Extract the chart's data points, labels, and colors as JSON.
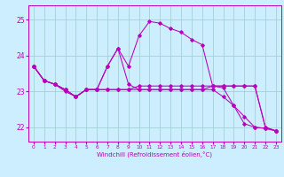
{
  "title": "",
  "xlabel": "Windchill (Refroidissement éolien,°C)",
  "bg_color": "#cceeff",
  "line_color": "#bb00bb",
  "grid_color": "#99cccc",
  "x_ticks": [
    0,
    1,
    2,
    3,
    4,
    5,
    6,
    7,
    8,
    9,
    10,
    11,
    12,
    13,
    14,
    15,
    16,
    17,
    18,
    19,
    20,
    21,
    22,
    23
  ],
  "ylim": [
    21.6,
    25.4
  ],
  "yticks": [
    22,
    23,
    24,
    25
  ],
  "series1": [
    23.7,
    23.3,
    23.2,
    23.0,
    22.85,
    23.05,
    23.05,
    23.7,
    24.2,
    23.7,
    24.55,
    24.95,
    24.9,
    24.75,
    24.65,
    24.45,
    24.3,
    23.15,
    23.1,
    22.6,
    22.1,
    22.0,
    21.97,
    21.9
  ],
  "series2": [
    23.7,
    23.3,
    23.2,
    23.05,
    22.85,
    23.05,
    23.05,
    23.05,
    23.05,
    23.05,
    23.15,
    23.15,
    23.15,
    23.15,
    23.15,
    23.15,
    23.15,
    23.15,
    23.15,
    23.15,
    23.15,
    23.15,
    22.0,
    21.9
  ],
  "series3": [
    23.7,
    23.3,
    23.2,
    23.05,
    22.85,
    23.05,
    23.05,
    23.05,
    23.05,
    23.05,
    23.05,
    23.05,
    23.05,
    23.05,
    23.05,
    23.05,
    23.05,
    23.05,
    22.85,
    22.6,
    22.3,
    22.0,
    21.97,
    21.9
  ],
  "series4": [
    23.7,
    23.3,
    23.2,
    23.05,
    22.85,
    23.05,
    23.05,
    23.7,
    24.2,
    23.2,
    23.05,
    23.05,
    23.05,
    23.05,
    23.05,
    23.05,
    23.05,
    23.15,
    23.15,
    23.15,
    23.15,
    23.15,
    22.0,
    21.9
  ]
}
